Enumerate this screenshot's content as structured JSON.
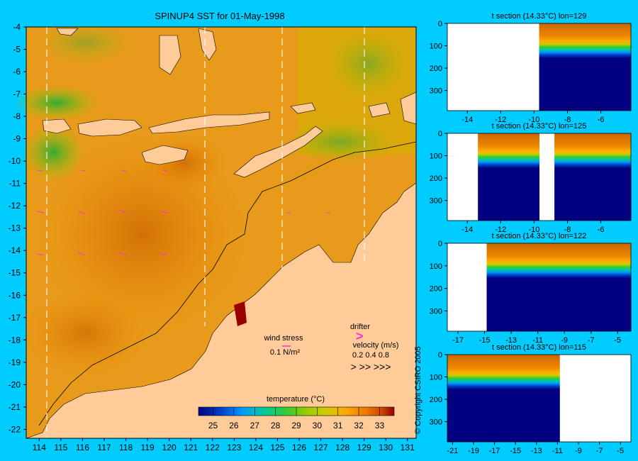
{
  "copyright": "© Copyright CSIRO 2005",
  "colors": {
    "background": "#00ccff",
    "land": "#ffcc99",
    "sst_scale": [
      "#000080",
      "#0044cc",
      "#0099ff",
      "#00cc99",
      "#33cc33",
      "#99cc00",
      "#cccc00",
      "#ffaa00",
      "#ee7700",
      "#cc4400",
      "#990000"
    ]
  },
  "map": {
    "title": "SPINUP4 SST for 01-May-1998",
    "legend": {
      "wind_stress_label": "wind stress",
      "wind_stress_value": "0.1 N/m²",
      "drifter_label": "drifter",
      "velocity_label": "velocity (m/s)",
      "velocity_values": "0.2  0.4  0.8",
      "velocity_arrows": ">   >>  >>>"
    },
    "colorbar": {
      "label": "temperature (°C)",
      "ticks": [
        "25",
        "26",
        "27",
        "28",
        "29",
        "30",
        "31",
        "32",
        "33"
      ]
    }
  },
  "chart_data": [
    {
      "type": "heatmap",
      "title": "SPINUP4 SST for 01-May-1998",
      "xlabel": "",
      "ylabel": "",
      "x_ticks": [
        "114",
        "115",
        "116",
        "117",
        "118",
        "119",
        "120",
        "121",
        "122",
        "123",
        "124",
        "125",
        "126",
        "127",
        "128",
        "129",
        "130",
        "131"
      ],
      "y_ticks": [
        "-4",
        "-5",
        "-6",
        "-7",
        "-8",
        "-9",
        "-10",
        "-11",
        "-12",
        "-13",
        "-14",
        "-15",
        "-16",
        "-17",
        "-18",
        "-19",
        "-20",
        "-21",
        "-22"
      ],
      "xlim": [
        113.4,
        131.4
      ],
      "ylim": [
        -22.4,
        -4.0
      ],
      "section_lons": [
        114.5,
        121.9,
        125.4,
        129.3
      ],
      "colorbar": {
        "label": "temperature (°C)",
        "range": [
          24.3,
          33.7
        ]
      },
      "grid": false
    },
    {
      "type": "heatmap",
      "title": "t section (14.33°C) lon=129",
      "x_ticks": [
        "-14",
        "-12",
        "-10",
        "-8",
        "-6"
      ],
      "y_ticks": [
        "0",
        "100",
        "200",
        "300"
      ],
      "xlim": [
        -15.2,
        -4.2
      ],
      "ylim": [
        0,
        390
      ],
      "thermocline_depth_m": [
        null,
        null,
        null,
        null,
        null,
        null,
        95,
        85,
        80,
        80,
        75,
        70
      ]
    },
    {
      "type": "heatmap",
      "title": "t section (14.33°C) lon=125",
      "x_ticks": [
        "-14",
        "-12",
        "-10",
        "-8",
        "-6"
      ],
      "y_ticks": [
        "0",
        "100",
        "200",
        "300"
      ],
      "xlim": [
        -15.2,
        -4.2
      ],
      "ylim": [
        0,
        390
      ],
      "thermocline_depth_m": [
        null,
        null,
        60,
        75,
        85,
        90,
        null,
        80,
        80,
        80,
        75,
        70
      ]
    },
    {
      "type": "heatmap",
      "title": "t section (14.33°C) lon=122",
      "x_ticks": [
        "-17",
        "-15",
        "-13",
        "-11",
        "-9",
        "-7",
        "-5"
      ],
      "y_ticks": [
        "0",
        "100",
        "200",
        "300"
      ],
      "xlim": [
        -17.8,
        -4.0
      ],
      "ylim": [
        0,
        390
      ],
      "thermocline_depth_m": [
        null,
        null,
        null,
        100,
        95,
        95,
        90,
        90,
        90,
        90,
        90,
        85,
        85,
        80
      ]
    },
    {
      "type": "heatmap",
      "title": "t section (14.33°C) lon=115",
      "x_ticks": [
        "-21",
        "-19",
        "-17",
        "-15",
        "-13",
        "-11",
        "-9",
        "-7",
        "-5"
      ],
      "y_ticks": [
        "0",
        "100",
        "200",
        "300"
      ],
      "xlim": [
        -21.5,
        -4.0
      ],
      "ylim": [
        0,
        390
      ],
      "thermocline_depth_m": [
        130,
        140,
        140,
        135,
        120,
        105,
        100,
        95,
        90,
        90,
        90,
        null,
        null,
        null,
        null,
        null,
        null,
        null
      ]
    }
  ]
}
